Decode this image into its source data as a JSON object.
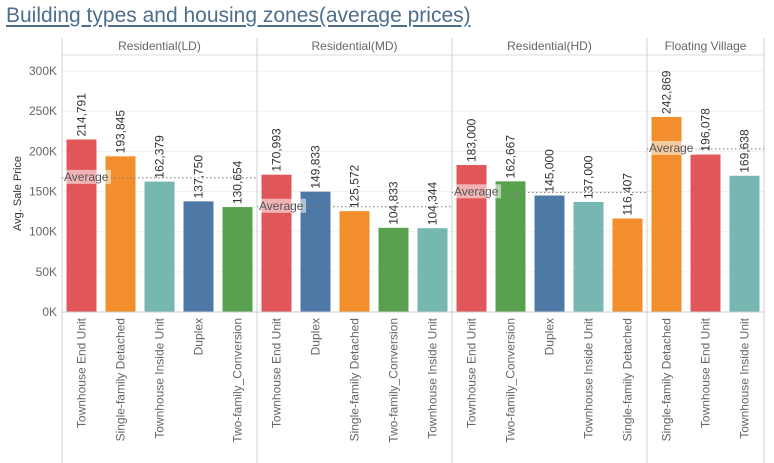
{
  "chart_data": {
    "type": "bar",
    "title": "Building types and housing zones(average prices)",
    "ylabel": "Avg. Sale Price",
    "ylim": [
      0,
      320000
    ],
    "yticks": [
      {
        "value": 0,
        "label": "0K"
      },
      {
        "value": 50000,
        "label": "50K"
      },
      {
        "value": 100000,
        "label": "100K"
      },
      {
        "value": 150000,
        "label": "150K"
      },
      {
        "value": 200000,
        "label": "200K"
      },
      {
        "value": 250000,
        "label": "250K"
      },
      {
        "value": 300000,
        "label": "300K"
      }
    ],
    "reference_label": "Average",
    "grid": true,
    "panels": [
      {
        "name": "Residential(LD)",
        "average": 167000,
        "bars": [
          {
            "category": "Townhouse End Unit",
            "value": 214791,
            "label": "214,791",
            "color": "#e15759"
          },
          {
            "category": "Single-family Detached",
            "value": 193845,
            "label": "193,845",
            "color": "#f28e2b"
          },
          {
            "category": "Townhouse Inside Unit",
            "value": 162379,
            "label": "162,379",
            "color": "#76b7b2"
          },
          {
            "category": "Duplex",
            "value": 137750,
            "label": "137,750",
            "color": "#4e79a7"
          },
          {
            "category": "Two-family_Conversion",
            "value": 130654,
            "label": "130,654",
            "color": "#59a14f"
          }
        ]
      },
      {
        "name": "Residential(MD)",
        "average": 131000,
        "bars": [
          {
            "category": "Townhouse End Unit",
            "value": 170993,
            "label": "170,993",
            "color": "#e15759"
          },
          {
            "category": "Duplex",
            "value": 149833,
            "label": "149,833",
            "color": "#4e79a7"
          },
          {
            "category": "Single-family Detached",
            "value": 125572,
            "label": "125,572",
            "color": "#f28e2b"
          },
          {
            "category": "Two-family_Conversion",
            "value": 104833,
            "label": "104,833",
            "color": "#59a14f"
          },
          {
            "category": "Townhouse Inside Unit",
            "value": 104344,
            "label": "104,344",
            "color": "#76b7b2"
          }
        ]
      },
      {
        "name": "Residential(HD)",
        "average": 149000,
        "bars": [
          {
            "category": "Townhouse End Unit",
            "value": 183000,
            "label": "183,000",
            "color": "#e15759"
          },
          {
            "category": "Two-family_Conversion",
            "value": 162667,
            "label": "162,667",
            "color": "#59a14f"
          },
          {
            "category": "Duplex",
            "value": 145000,
            "label": "145,000",
            "color": "#4e79a7"
          },
          {
            "category": "Townhouse Inside Unit",
            "value": 137000,
            "label": "137,000",
            "color": "#76b7b2"
          },
          {
            "category": "Single-family Detached",
            "value": 116407,
            "label": "116,407",
            "color": "#f28e2b"
          }
        ]
      },
      {
        "name": "Floating Village",
        "average": 203000,
        "bars": [
          {
            "category": "Single-family Detached",
            "value": 242869,
            "label": "242,869",
            "color": "#f28e2b"
          },
          {
            "category": "Townhouse End Unit",
            "value": 196078,
            "label": "196,078",
            "color": "#e15759"
          },
          {
            "category": "Townhouse Inside Unit",
            "value": 169638,
            "label": "169,638",
            "color": "#76b7b2"
          }
        ]
      }
    ]
  }
}
